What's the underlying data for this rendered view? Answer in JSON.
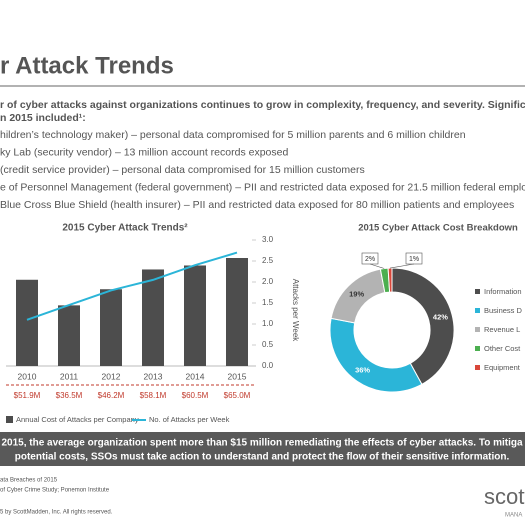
{
  "slide": {
    "title": "r Attack Trends",
    "intro": [
      "r of cyber attacks against organizations continues to grow in complexity, frequency, and severity. Significar",
      "n 2015 included¹:"
    ],
    "bullets": [
      "hildren’s technology maker) – personal data compromised for 5 million parents and 6 million children",
      "ky Lab (security vendor) – 13 million account records exposed",
      " (credit service provider) – personal data compromised for 15 million customers",
      "e of Personnel Management (federal government) – PII and restricted data exposed for 21.5 million federal employe",
      "Blue Cross Blue Shield (health insurer) – PII and restricted data exposed for 80 million patients and employees"
    ],
    "banner": [
      "2015, the average organization spent more than $15 million remediating the effects of cyber attacks. To mitiga",
      "potential costs, SSOs must take action to understand and protect the flow of their sensitive information."
    ],
    "footnotes": [
      "ata Breaches of 2015",
      "of Cyber Crime Study; Ponemon Institute",
      "5 by ScottMadden, Inc. All rights reserved."
    ],
    "logo": "scott",
    "logo_sub": "MANA"
  },
  "chart_data": [
    {
      "type": "bar_line",
      "title": "2015 Cyber Attack Trends²",
      "categories": [
        "2010",
        "2011",
        "2012",
        "2013",
        "2014",
        "2015"
      ],
      "series": [
        {
          "name": "Annual Cost of Attacks per Company",
          "type": "bar",
          "color": "#4d4d4d",
          "values": [
            51.9,
            36.5,
            46.2,
            58.1,
            60.5,
            65.0
          ],
          "value_labels": [
            "$51.9M",
            "$36.5M",
            "$46.2M",
            "$58.1M",
            "$60.5M",
            "$65.0M"
          ],
          "label_color": "#c0392b"
        },
        {
          "name": "No. of Attacks per Week",
          "type": "line",
          "axis": "y2",
          "color": "#2bb5d8",
          "values": [
            1.1,
            1.45,
            1.8,
            2.05,
            2.4,
            2.7
          ]
        }
      ],
      "y2label": "Attacks per Week",
      "y2lim": [
        0,
        3
      ],
      "y2ticks": [
        {
          "value": 0,
          "label": "0.0"
        },
        {
          "value": 0.5,
          "label": "0.5"
        },
        {
          "value": 1,
          "label": "1.0"
        },
        {
          "value": 1.5,
          "label": "1.5"
        },
        {
          "value": 2,
          "label": "2.0"
        },
        {
          "value": 2.5,
          "label": "2.5"
        },
        {
          "value": 3,
          "label": "3.0"
        }
      ]
    },
    {
      "type": "donut",
      "title": "2015 Cyber Attack Cost Breakdown",
      "categories": [
        "Information",
        "Business D",
        "Revenue L",
        "Other Cost",
        "Equipment"
      ],
      "values": [
        42,
        36,
        19,
        2,
        1
      ],
      "value_labels": [
        "42%",
        "36%",
        "19%",
        "2%",
        "1%"
      ],
      "colors": [
        "#4d4d4d",
        "#2bb5d8",
        "#b3b3b3",
        "#4caf50",
        "#d9473a"
      ]
    }
  ]
}
